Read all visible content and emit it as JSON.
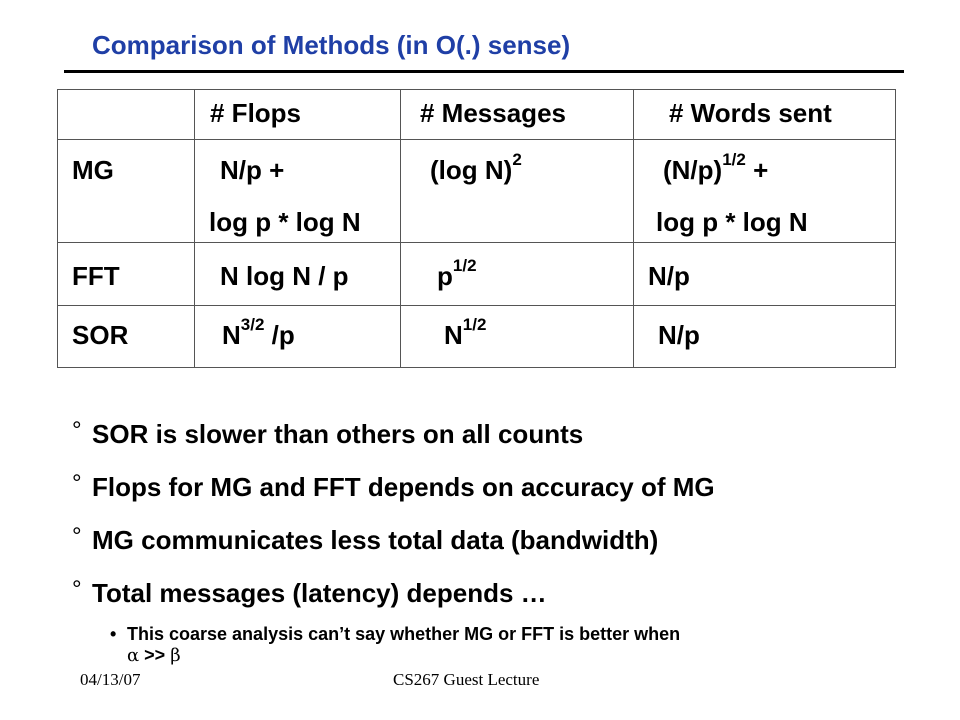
{
  "title": "Comparison of Methods (in O(.) sense)",
  "table": {
    "headers": {
      "flops": "# Flops",
      "messages": "# Messages",
      "words": "# Words sent"
    },
    "rows": {
      "mg": {
        "label": "MG",
        "flops_line1": "N/p +",
        "flops_line2": "log p * log N",
        "messages_base": "(log N)",
        "messages_exp": "2",
        "words_base": "(N/p)",
        "words_exp": "1/2",
        "words_tail": " +",
        "words_line2": "log p * log N"
      },
      "fft": {
        "label": "FFT",
        "flops": "N log N / p",
        "messages_base": "p",
        "messages_exp": "1/2",
        "words": "N/p"
      },
      "sor": {
        "label": "SOR",
        "flops_base": "N",
        "flops_exp": "3/2",
        "flops_tail": " /p",
        "messages_base": "N",
        "messages_exp": "1/2",
        "words": "N/p"
      }
    }
  },
  "bullets": {
    "marker": "°",
    "items": [
      "SOR is slower than others on all counts",
      "Flops for MG and FFT depends on accuracy of MG",
      "MG communicates less total data (bandwidth)",
      "Total messages (latency) depends …"
    ]
  },
  "sub_bullet": {
    "marker": "•",
    "text": "This coarse analysis can’t say whether MG or FFT is better when",
    "alpha": "α",
    "op": ">>",
    "beta": "β"
  },
  "footer": {
    "date": "04/13/07",
    "course": "CS267 Guest Lecture"
  },
  "colors": {
    "title": "#1f3fa6"
  }
}
